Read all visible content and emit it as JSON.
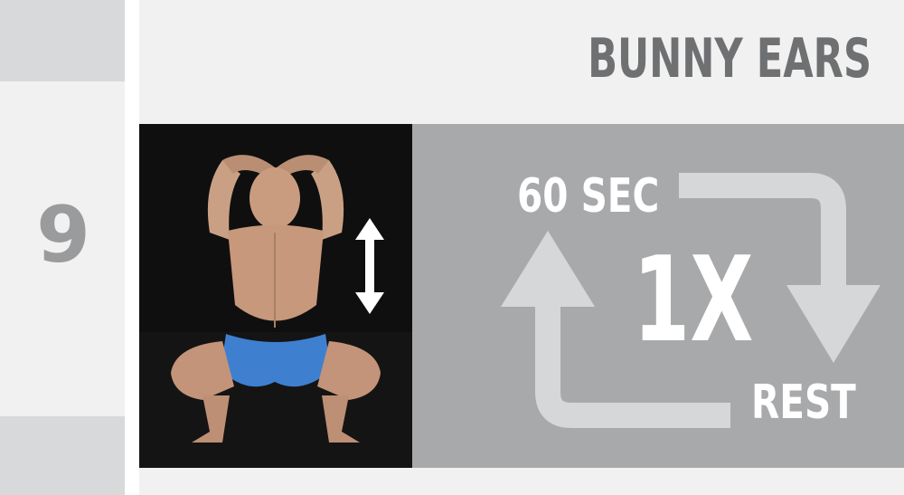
{
  "step": {
    "number": "9"
  },
  "exercise": {
    "title": "BUNNY EARS"
  },
  "cycle": {
    "duration": "60 SEC",
    "repetitions": "1X",
    "rest": "REST"
  },
  "icons": {
    "motion": "up-down-arrow-icon",
    "loop": "cycle-arrows-icon"
  }
}
